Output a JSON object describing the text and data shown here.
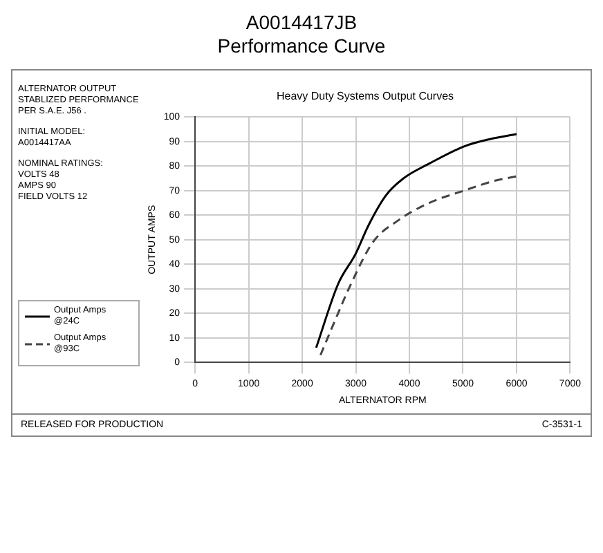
{
  "chart_data": {
    "type": "line",
    "title": "A0014417JB\nPerformance Curve",
    "subtitle": "Heavy Duty Systems Output Curves",
    "xlabel": "ALTERNATOR RPM",
    "ylabel": "OUTPUT AMPS",
    "annotations": [
      "ALTERNATOR OUTPUT\nSTABLIZED PERFORMANCE\nPER S.A.E. J56 .",
      "INITIAL MODEL:\nA0014417AA",
      "NOMINAL RATINGS:\nVOLTS 48\nAMPS 90\nFIELD VOLTS 12",
      "RELEASED FOR PRODUCTION",
      "C-3531-1"
    ],
    "series": [
      {
        "name": "Output Amps @24C",
        "color": "#000000",
        "line_style": "solid",
        "x": [
          2260,
          2670,
          2990,
          3240,
          3560,
          3890,
          4370,
          5020,
          5510,
          6000
        ],
        "values": [
          6,
          32,
          44,
          56,
          68,
          75,
          81,
          88,
          91,
          93
        ]
      },
      {
        "name": "Output Amps @93C",
        "color": "#444444",
        "line_style": "dashed",
        "x": [
          2340,
          2590,
          2910,
          3320,
          3800,
          4370,
          5020,
          5590,
          6040
        ],
        "values": [
          3,
          16,
          32,
          49,
          58,
          65,
          70,
          74,
          76
        ]
      }
    ],
    "xlim": [
      0,
      7000
    ],
    "xticks": [
      0,
      1000,
      2000,
      3000,
      4000,
      5000,
      6000,
      7000
    ],
    "ylim": [
      0,
      100
    ],
    "yticks": [
      0,
      10,
      20,
      30,
      40,
      50,
      60,
      70,
      80,
      90,
      100
    ],
    "grid": true,
    "legend": "left",
    "marker": "none"
  }
}
